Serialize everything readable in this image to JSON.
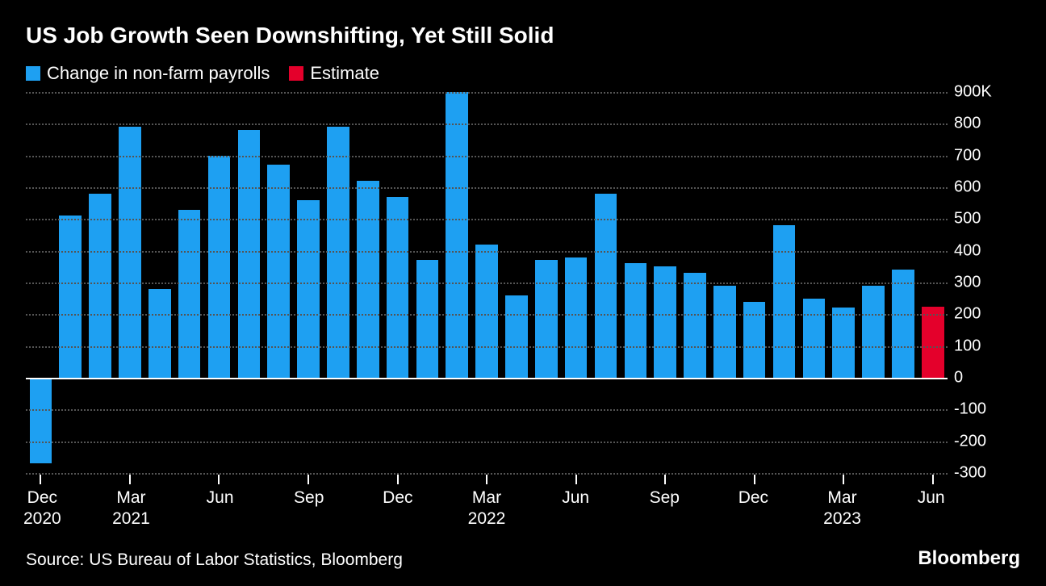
{
  "title": "US Job Growth Seen Downshifting, Yet Still Solid",
  "legend": [
    {
      "label": "Change in non-farm payrolls",
      "color": "#1ea0f2"
    },
    {
      "label": "Estimate",
      "color": "#e4002b"
    }
  ],
  "chart": {
    "type": "bar",
    "background_color": "#000000",
    "grid_color": "#555555",
    "baseline_color": "#ffffff",
    "text_color": "#ffffff",
    "title_fontsize": 28,
    "axis_fontsize": 20,
    "ylim": [
      -300,
      900
    ],
    "ytick_step": 100,
    "y_unit_suffix_top": "K",
    "y_ticks": [
      900,
      800,
      700,
      600,
      500,
      400,
      300,
      200,
      100,
      0,
      -100,
      -200,
      -300
    ],
    "series": [
      {
        "value": -270,
        "series": 0
      },
      {
        "value": 510,
        "series": 0
      },
      {
        "value": 580,
        "series": 0
      },
      {
        "value": 790,
        "series": 0
      },
      {
        "value": 280,
        "series": 0
      },
      {
        "value": 530,
        "series": 0
      },
      {
        "value": 700,
        "series": 0
      },
      {
        "value": 780,
        "series": 0
      },
      {
        "value": 670,
        "series": 0
      },
      {
        "value": 560,
        "series": 0
      },
      {
        "value": 790,
        "series": 0
      },
      {
        "value": 620,
        "series": 0
      },
      {
        "value": 570,
        "series": 0
      },
      {
        "value": 370,
        "series": 0
      },
      {
        "value": 900,
        "series": 0
      },
      {
        "value": 420,
        "series": 0
      },
      {
        "value": 260,
        "series": 0
      },
      {
        "value": 370,
        "series": 0
      },
      {
        "value": 380,
        "series": 0
      },
      {
        "value": 580,
        "series": 0
      },
      {
        "value": 360,
        "series": 0
      },
      {
        "value": 350,
        "series": 0
      },
      {
        "value": 330,
        "series": 0
      },
      {
        "value": 290,
        "series": 0
      },
      {
        "value": 240,
        "series": 0
      },
      {
        "value": 480,
        "series": 0
      },
      {
        "value": 250,
        "series": 0
      },
      {
        "value": 220,
        "series": 0
      },
      {
        "value": 290,
        "series": 0
      },
      {
        "value": 340,
        "series": 0
      },
      {
        "value": 225,
        "series": 1
      }
    ],
    "x_labels": [
      {
        "index": 0,
        "line1": "Dec",
        "line2": "2020"
      },
      {
        "index": 3,
        "line1": "Mar",
        "line2": "2021"
      },
      {
        "index": 6,
        "line1": "Jun",
        "line2": ""
      },
      {
        "index": 9,
        "line1": "Sep",
        "line2": ""
      },
      {
        "index": 12,
        "line1": "Dec",
        "line2": ""
      },
      {
        "index": 15,
        "line1": "Mar",
        "line2": "2022"
      },
      {
        "index": 18,
        "line1": "Jun",
        "line2": ""
      },
      {
        "index": 21,
        "line1": "Sep",
        "line2": ""
      },
      {
        "index": 24,
        "line1": "Dec",
        "line2": ""
      },
      {
        "index": 27,
        "line1": "Mar",
        "line2": "2023"
      },
      {
        "index": 30,
        "line1": "Jun",
        "line2": ""
      }
    ]
  },
  "source": "Source: US Bureau of Labor Statistics, Bloomberg",
  "brand": "Bloomberg"
}
